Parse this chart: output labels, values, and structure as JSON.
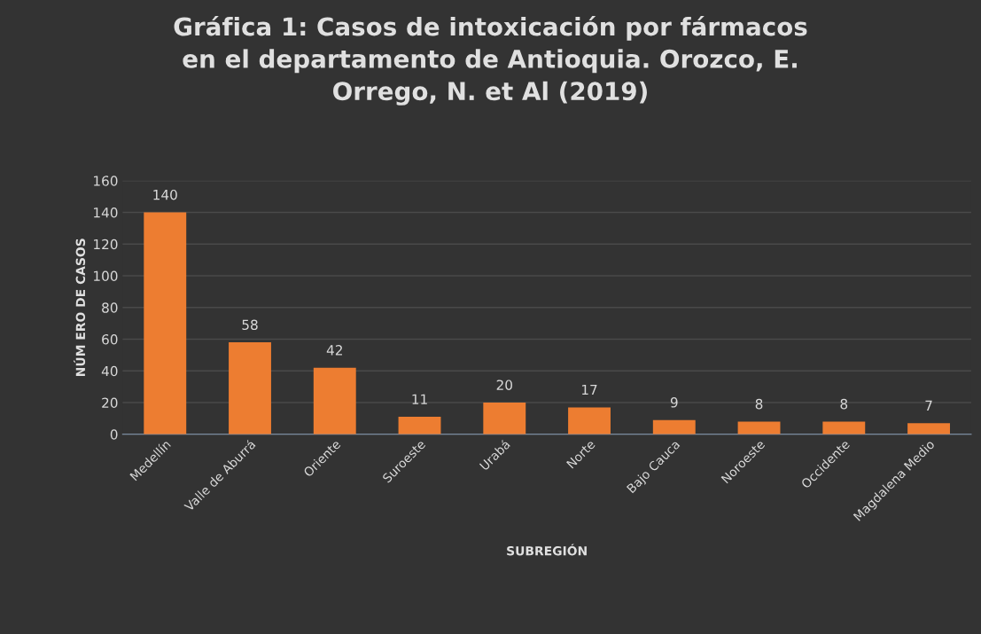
{
  "chart_data": {
    "type": "bar",
    "title": "Gráfica 1: Casos de intoxicación por fármacos\nen el departamento de Antioquia. Orozco, E.\nOrrego, N. et Al (2019)",
    "xlabel": "SUBREGIÓN",
    "ylabel": "NÚM ERO DE CASOS",
    "categories": [
      "Medellín",
      "Valle de Aburrá",
      "Oriente",
      "Suroeste",
      "Urabá",
      "Norte",
      "Bajo Cauca",
      "Noroeste",
      "Occidente",
      "Magdalena Medio"
    ],
    "values": [
      140,
      58,
      42,
      11,
      20,
      17,
      9,
      8,
      8,
      7
    ],
    "color": "#ed7d31",
    "ylim": [
      0,
      160
    ],
    "yticks": [
      0,
      20,
      40,
      60,
      80,
      100,
      120,
      140,
      160
    ],
    "grid": "y",
    "data_labels": true
  }
}
